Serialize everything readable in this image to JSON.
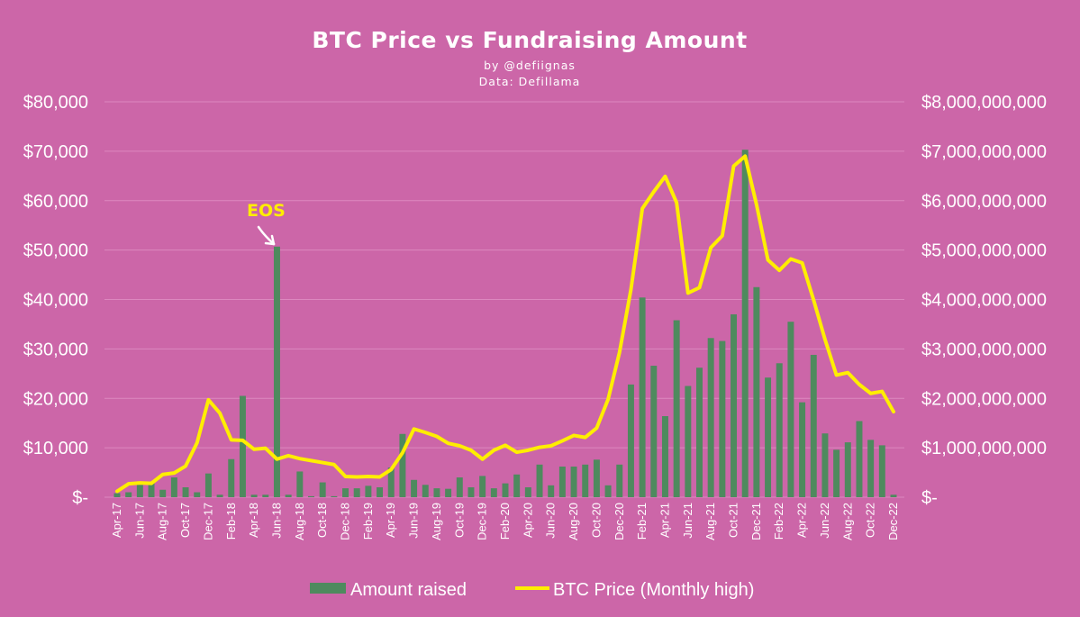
{
  "chart_data": {
    "type": "bar",
    "title": "BTC Price vs Fundraising Amount",
    "subtitle_lines": [
      "by @defiignas",
      "Data: Defillama"
    ],
    "colors": {
      "background": "#cc66a8",
      "bars": "#4e8a5e",
      "line": "#ffee00",
      "text": "#ffffff",
      "grid": "#dd88bf",
      "annotation": "#ffee00",
      "arrow": "#ffffff"
    },
    "categories": [
      "Apr-17",
      "May-17",
      "Jun-17",
      "Jul-17",
      "Aug-17",
      "Sep-17",
      "Oct-17",
      "Nov-17",
      "Dec-17",
      "Jan-18",
      "Feb-18",
      "Mar-18",
      "Apr-18",
      "May-18",
      "Jun-18",
      "Jul-18",
      "Aug-18",
      "Sep-18",
      "Oct-18",
      "Nov-18",
      "Dec-18",
      "Jan-19",
      "Feb-19",
      "Mar-19",
      "Apr-19",
      "May-19",
      "Jun-19",
      "Jul-19",
      "Aug-19",
      "Sep-19",
      "Oct-19",
      "Nov-19",
      "Dec-19",
      "Jan-20",
      "Feb-20",
      "Mar-20",
      "Apr-20",
      "May-20",
      "Jun-20",
      "Jul-20",
      "Aug-20",
      "Sep-20",
      "Oct-20",
      "Nov-20",
      "Dec-20",
      "Jan-21",
      "Feb-21",
      "Mar-21",
      "Apr-21",
      "May-21",
      "Jun-21",
      "Jul-21",
      "Aug-21",
      "Sep-21",
      "Oct-21",
      "Nov-21",
      "Dec-21",
      "Jan-22",
      "Feb-22",
      "Mar-22",
      "Apr-22",
      "May-22",
      "Jun-22",
      "Jul-22",
      "Aug-22",
      "Sep-22",
      "Oct-22",
      "Nov-22",
      "Dec-22"
    ],
    "tick_labels": [
      "Apr-17",
      "Jun-17",
      "Aug-17",
      "Oct-17",
      "Dec-17",
      "Feb-18",
      "Apr-18",
      "Jun-18",
      "Aug-18",
      "Oct-18",
      "Dec-18",
      "Feb-19",
      "Apr-19",
      "Jun-19",
      "Aug-19",
      "Oct-19",
      "Dec-19",
      "Feb-20",
      "Apr-20",
      "Jun-20",
      "Aug-20",
      "Oct-20",
      "Dec-20",
      "Feb-21",
      "Apr-21",
      "Jun-21",
      "Aug-21",
      "Oct-21",
      "Dec-21",
      "Feb-22",
      "Apr-22",
      "Jun-22",
      "Aug-22",
      "Oct-22",
      "Dec-22"
    ],
    "series": [
      {
        "name": "Amount raised",
        "type": "bar",
        "axis": "right",
        "values": [
          80000000,
          100000000,
          250000000,
          300000000,
          150000000,
          400000000,
          200000000,
          100000000,
          480000000,
          50000000,
          770000000,
          2050000000,
          50000000,
          50000000,
          5070000000,
          50000000,
          520000000,
          20000000,
          300000000,
          20000000,
          180000000,
          180000000,
          230000000,
          200000000,
          600000000,
          1280000000,
          350000000,
          250000000,
          180000000,
          170000000,
          400000000,
          200000000,
          430000000,
          180000000,
          280000000,
          460000000,
          200000000,
          660000000,
          240000000,
          620000000,
          620000000,
          660000000,
          760000000,
          240000000,
          660000000,
          2280000000,
          4040000000,
          2660000000,
          1640000000,
          3580000000,
          2250000000,
          2620000000,
          3220000000,
          3160000000,
          3700000000,
          7030000000,
          4250000000,
          2420000000,
          2710000000,
          3550000000,
          1920000000,
          2880000000,
          1290000000,
          960000000,
          1110000000,
          1540000000,
          1160000000,
          1050000000,
          50000000
        ]
      },
      {
        "name": "BTC Price (Monthly high)",
        "type": "line",
        "axis": "left",
        "values": [
          1200,
          2700,
          2900,
          2800,
          4600,
          4900,
          6300,
          11000,
          19700,
          17000,
          11600,
          11500,
          9700,
          9900,
          7700,
          8400,
          7800,
          7400,
          7000,
          6600,
          4200,
          4100,
          4200,
          4100,
          5600,
          9000,
          13800,
          13100,
          12300,
          10900,
          10400,
          9500,
          7700,
          9500,
          10500,
          9100,
          9500,
          10100,
          10400,
          11400,
          12500,
          12100,
          14000,
          19800,
          29300,
          42000,
          58400,
          61800,
          64900,
          59600,
          41300,
          42400,
          50500,
          52900,
          67000,
          69000,
          59200,
          48000,
          45900,
          48200,
          47400,
          39900,
          31900,
          24700,
          25200,
          22800,
          21000,
          21400,
          17300
        ]
      }
    ],
    "left_axis": {
      "ylim": [
        0,
        80000
      ],
      "ticks": [
        "$-",
        "$10,000",
        "$20,000",
        "$30,000",
        "$40,000",
        "$50,000",
        "$60,000",
        "$70,000",
        "$80,000"
      ]
    },
    "right_axis": {
      "ylim": [
        0,
        8000000000
      ],
      "ticks": [
        "$-",
        "$1,000,000,000",
        "$2,000,000,000",
        "$3,000,000,000",
        "$4,000,000,000",
        "$5,000,000,000",
        "$6,000,000,000",
        "$7,000,000,000",
        "$8,000,000,000"
      ]
    },
    "grid": true,
    "legend": {
      "placement": "bottom-center",
      "entries": [
        "Amount raised",
        "BTC Price (Monthly high)"
      ]
    },
    "annotations": [
      {
        "text": "EOS",
        "category": "Jun-18",
        "arrow": true
      }
    ]
  }
}
